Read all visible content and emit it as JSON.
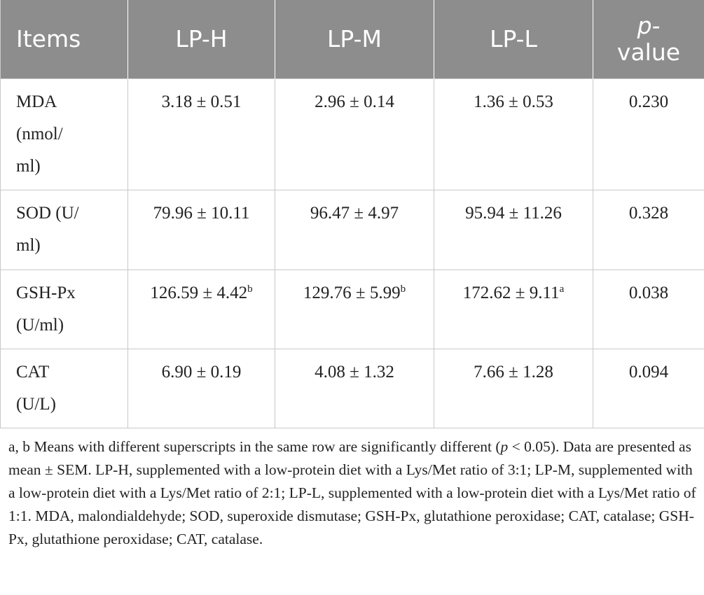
{
  "table": {
    "headers": {
      "items": "Items",
      "lp_h": "LP-H",
      "lp_m": "LP-M",
      "lp_l": "LP-L",
      "pvalue_p": "p-",
      "pvalue_rest": "value"
    },
    "rows": [
      {
        "item_line1": "MDA",
        "item_line2": "(nmol/",
        "item_line3": "ml)",
        "lp_h": "3.18 ± 0.51",
        "lp_h_sup": "",
        "lp_m": "2.96 ± 0.14",
        "lp_m_sup": "",
        "lp_l": "1.36 ± 0.53",
        "lp_l_sup": "",
        "p": "0.230"
      },
      {
        "item_line1": "SOD (U/",
        "item_line2": "ml)",
        "item_line3": "",
        "lp_h": "79.96 ± 10.11",
        "lp_h_sup": "",
        "lp_m": "96.47 ± 4.97",
        "lp_m_sup": "",
        "lp_l": "95.94 ± 11.26",
        "lp_l_sup": "",
        "p": "0.328"
      },
      {
        "item_line1": "GSH-Px",
        "item_line2": "(U/ml)",
        "item_line3": "",
        "lp_h": "126.59 ± 4.42",
        "lp_h_sup": "b",
        "lp_m": "129.76 ± 5.99",
        "lp_m_sup": "b",
        "lp_l": "172.62 ± 9.11",
        "lp_l_sup": "a",
        "p": "0.038"
      },
      {
        "item_line1": "CAT",
        "item_line2": "(U/L)",
        "item_line3": "",
        "lp_h": "6.90 ± 0.19",
        "lp_h_sup": "",
        "lp_m": "4.08 ± 1.32",
        "lp_m_sup": "",
        "lp_l": "7.66 ± 1.28",
        "lp_l_sup": "",
        "p": "0.094"
      }
    ]
  },
  "footnote": {
    "part1": "a, b Means with different superscripts in the same row are significantly different (",
    "p_italic": "p",
    "part2": " < 0.05). Data are presented as mean ± SEM. LP-H, supplemented with a low-protein diet with a Lys/Met ratio of 3:1; LP-M, supplemented with a low-protein diet with a Lys/Met ratio of 2:1; LP-L, supplemented with a low-protein diet with a Lys/Met ratio of 1:1. MDA, malondialdehyde; SOD, superoxide dismutase; GSH-Px, glutathione peroxidase; CAT, catalase; GSH-Px, glutathione peroxidase; CAT, catalase."
  }
}
